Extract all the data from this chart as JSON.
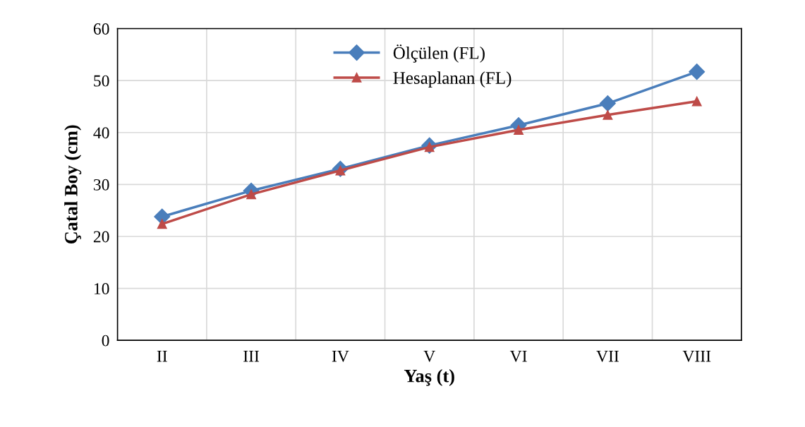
{
  "chart_data": {
    "type": "line",
    "xlabel": "Yaş (t)",
    "ylabel": "Çatal Boy (cm)",
    "categories": [
      "II",
      "III",
      "IV",
      "V",
      "VI",
      "VII",
      "VIII"
    ],
    "series": [
      {
        "name": "Ölçülen (FL)",
        "color": "#4a7ebb",
        "marker": "diamond",
        "values": [
          23.8,
          28.8,
          33.0,
          37.5,
          41.4,
          45.6,
          51.7
        ]
      },
      {
        "name": "Hesaplanan (FL)",
        "color": "#be4b48",
        "marker": "triangle",
        "values": [
          22.4,
          28.1,
          32.7,
          37.2,
          40.5,
          43.4,
          46.0
        ]
      }
    ],
    "ylim": [
      0,
      60
    ],
    "yticks": [
      0,
      10,
      20,
      30,
      40,
      50,
      60
    ],
    "grid": true,
    "legend": "top",
    "line_style": "solid"
  }
}
